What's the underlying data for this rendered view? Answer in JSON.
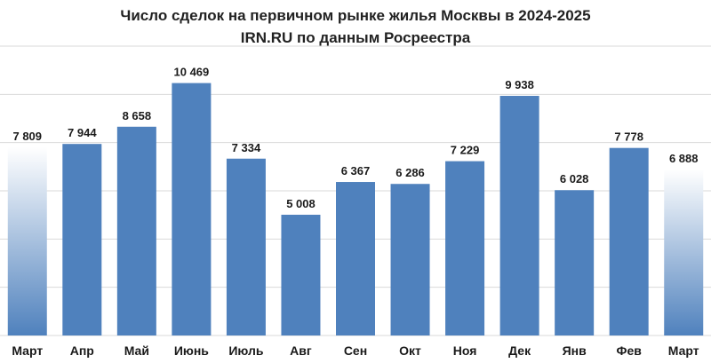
{
  "chart_data": {
    "type": "bar",
    "title": "Число сделок на первичном рынке жилья  Москвы в 2024-2025",
    "subtitle": "IRN.RU по данным Росреестра",
    "categories": [
      "Март",
      "Апр",
      "Май",
      "Июнь",
      "Июль",
      "Авг",
      "Сен",
      "Окт",
      "Ноя",
      "Дек",
      "Янв",
      "Фев",
      "Март"
    ],
    "values": [
      7809,
      7944,
      8658,
      10469,
      7334,
      5008,
      6367,
      6286,
      7229,
      9938,
      6028,
      7778,
      6888
    ],
    "value_labels": [
      "7 809",
      "7 944",
      "8 658",
      "10 469",
      "7 334",
      "5 008",
      "6 367",
      "6 286",
      "7 229",
      "9 938",
      "6 028",
      "7 778",
      "6 888"
    ],
    "highlighted_indices": [
      0,
      12
    ],
    "ylim": [
      0,
      12000
    ],
    "y_gridlines": [
      2000,
      4000,
      6000,
      8000,
      10000,
      12000
    ],
    "grid": true,
    "xlabel": "",
    "ylabel": "",
    "colors": {
      "bar": "#4f81bd",
      "bar_highlight_top": "#ffffff",
      "bar_highlight_bottom": "#4f81bd",
      "grid": "#d9d9d9"
    }
  }
}
